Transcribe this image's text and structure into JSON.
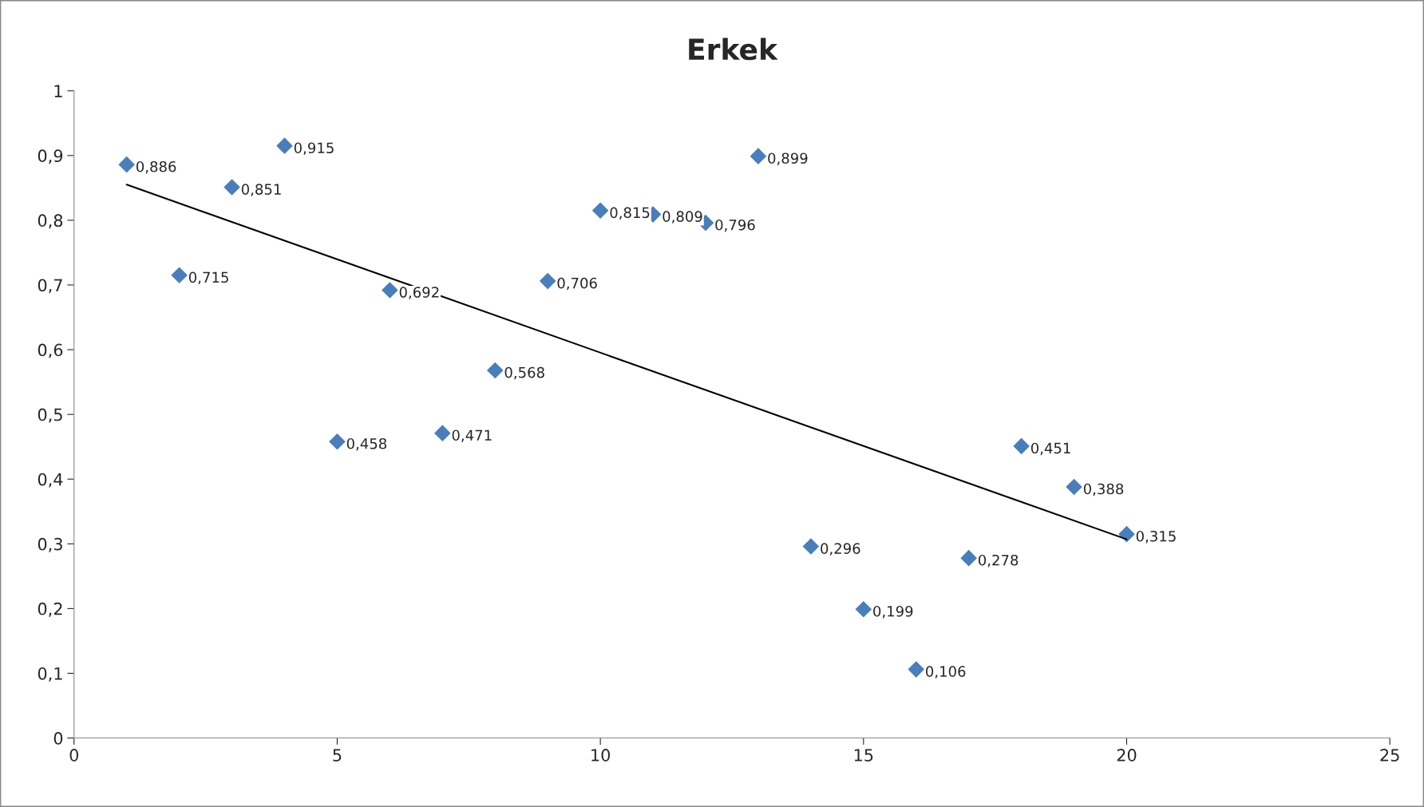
{
  "chart_data": {
    "type": "scatter",
    "title": "Erkek",
    "x": [
      1,
      2,
      3,
      4,
      5,
      6,
      7,
      8,
      9,
      10,
      11,
      12,
      13,
      14,
      15,
      16,
      17,
      18,
      19,
      20
    ],
    "series": [
      {
        "color": "#4a7ebb",
        "marker": "diamond",
        "values": [
          0.886,
          0.715,
          0.851,
          0.915,
          0.458,
          0.692,
          0.471,
          0.568,
          0.706,
          0.815,
          0.809,
          0.796,
          0.899,
          0.296,
          0.199,
          0.106,
          0.278,
          0.451,
          0.388,
          0.315
        ],
        "value_labels": [
          "0,886",
          "0,715",
          "0,851",
          "0,915",
          "0,458",
          "0,692",
          "0,471",
          "0,568",
          "0,706",
          "0,815",
          "0,809",
          "0,796",
          "0,899",
          "0,296",
          "0,199",
          "0,106",
          "0,278",
          "0,451",
          "0,388",
          "0,315"
        ]
      },
      {
        "type": "line",
        "color": "#000000",
        "x": [
          1,
          20
        ],
        "values": [
          0.855,
          0.307
        ],
        "line_style": "solid"
      }
    ],
    "xlim": [
      0,
      25
    ],
    "xticks": [
      0,
      5,
      10,
      15,
      20,
      25
    ],
    "ylim": [
      0,
      1
    ],
    "yticks": [
      0,
      {
        "value": 0.1,
        "label": "0,1"
      },
      {
        "value": 0.2,
        "label": "0,2"
      },
      {
        "value": 0.3,
        "label": "0,3"
      },
      {
        "value": 0.4,
        "label": "0,4"
      },
      {
        "value": 0.5,
        "label": "0,5"
      },
      {
        "value": 0.6,
        "label": "0,6"
      },
      {
        "value": 0.7,
        "label": "0,7"
      },
      {
        "value": 0.8,
        "label": "0,8"
      },
      {
        "value": 0.9,
        "label": "0,9"
      },
      1
    ],
    "grid": false,
    "legend": false
  }
}
